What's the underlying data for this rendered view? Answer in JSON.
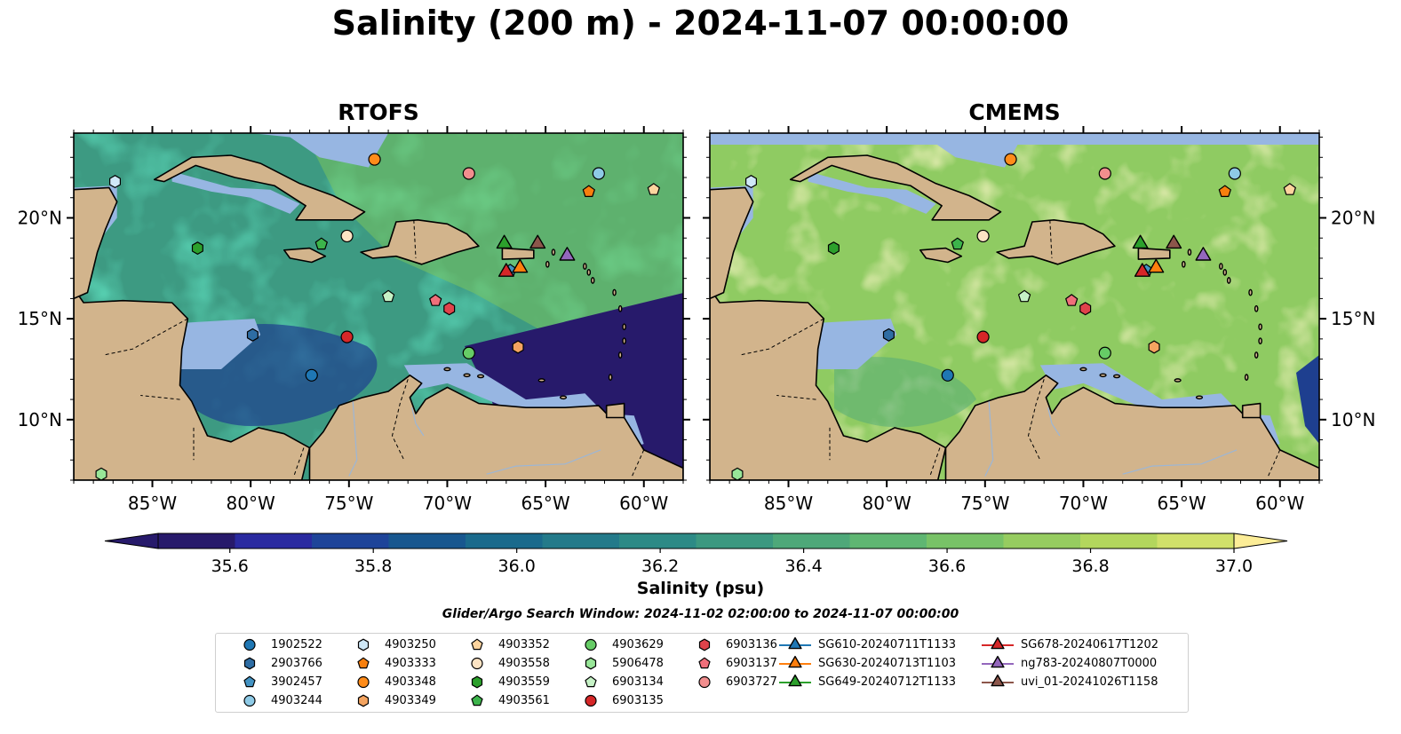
{
  "title": "Salinity (200 m) - 2024-11-07 00:00:00",
  "panels": [
    {
      "id": "rtofs",
      "title": "RTOFS"
    },
    {
      "id": "cmems",
      "title": "CMEMS"
    }
  ],
  "map_extent": {
    "lon_min": -89,
    "lon_max": -58,
    "lat_min": 7,
    "lat_max": 24.2
  },
  "lon_ticks": [
    {
      "lon": -85,
      "label": "85°W"
    },
    {
      "lon": -80,
      "label": "80°W"
    },
    {
      "lon": -75,
      "label": "75°W"
    },
    {
      "lon": -70,
      "label": "70°W"
    },
    {
      "lon": -65,
      "label": "65°W"
    },
    {
      "lon": -60,
      "label": "60°W"
    }
  ],
  "lat_ticks": [
    {
      "lat": 20,
      "label": "20°N"
    },
    {
      "lat": 15,
      "label": "15°N"
    },
    {
      "lat": 10,
      "label": "10°N"
    }
  ],
  "colorbar": {
    "label": "Salinity (psu)",
    "min": 35.5,
    "max": 37.0,
    "step": 0.1,
    "tick_values": [
      "35.6",
      "35.8",
      "36.0",
      "36.2",
      "36.4",
      "36.6",
      "36.8",
      "37.0"
    ],
    "colors": [
      "#271a6b",
      "#2a2aa0",
      "#1e4499",
      "#18578f",
      "#1a6a8c",
      "#237a8a",
      "#2d8a86",
      "#3c9880",
      "#4ea879",
      "#5fb672",
      "#78c267",
      "#96cc60",
      "#b3d65d",
      "#d0e06a",
      "#fced97"
    ]
  },
  "colors": {
    "land": "#d2b48c",
    "shallow": "#97b6e2",
    "ocean_fresh": "#271a6b"
  },
  "search_window": "Glider/Argo Search Window: 2024-11-02 02:00:00 to 2024-11-07 00:00:00",
  "markers": [
    {
      "id": "1902522",
      "shape": "circle",
      "color": "#1f77b4",
      "lon": -76.9,
      "lat": 12.2
    },
    {
      "id": "2903766",
      "shape": "hexagon",
      "color": "#2e6da4",
      "lon": -79.9,
      "lat": 14.2
    },
    {
      "id": "3902457",
      "shape": "pentagon",
      "color": "#4393c3",
      "lon": -66.8,
      "lat": 17.4
    },
    {
      "id": "4903244",
      "shape": "circle",
      "color": "#8ecae6",
      "lon": -62.3,
      "lat": 22.2
    },
    {
      "id": "4903250",
      "shape": "hexagon",
      "color": "#cfe8f7",
      "lon": -86.9,
      "lat": 21.8
    },
    {
      "id": "4903333",
      "shape": "pentagon",
      "color": "#f77f0e",
      "lon": -62.8,
      "lat": 21.3
    },
    {
      "id": "4903348",
      "shape": "circle",
      "color": "#ff8c1a",
      "lon": -73.7,
      "lat": 22.9
    },
    {
      "id": "4903349",
      "shape": "hexagon",
      "color": "#f4a460",
      "lon": -66.4,
      "lat": 13.6
    },
    {
      "id": "4903352",
      "shape": "pentagon",
      "color": "#fdd49e",
      "lon": -59.5,
      "lat": 21.4
    },
    {
      "id": "4903558",
      "shape": "circle",
      "color": "#fde4c4",
      "lon": -75.1,
      "lat": 19.1
    },
    {
      "id": "4903559",
      "shape": "hexagon",
      "color": "#2ca02c",
      "lon": -82.7,
      "lat": 18.5
    },
    {
      "id": "4903561",
      "shape": "pentagon",
      "color": "#3cb44b",
      "lon": -76.4,
      "lat": 18.7
    },
    {
      "id": "4903629",
      "shape": "circle",
      "color": "#66cc66",
      "lon": -68.9,
      "lat": 13.3
    },
    {
      "id": "5906478",
      "shape": "hexagon",
      "color": "#98e698",
      "lon": -87.6,
      "lat": 7.3
    },
    {
      "id": "6903134",
      "shape": "pentagon",
      "color": "#c6f2c6",
      "lon": -73.0,
      "lat": 16.1
    },
    {
      "id": "6903135",
      "shape": "circle",
      "color": "#d62728",
      "lon": -75.1,
      "lat": 14.1
    },
    {
      "id": "6903136",
      "shape": "hexagon",
      "color": "#e0434b",
      "lon": -69.9,
      "lat": 15.5
    },
    {
      "id": "6903137",
      "shape": "pentagon",
      "color": "#ef6f7a",
      "lon": -70.6,
      "lat": 15.9
    },
    {
      "id": "6903727",
      "shape": "circle",
      "color": "#f28e8e",
      "lon": -68.9,
      "lat": 22.2
    },
    {
      "id": "SG610-20240711T1133",
      "shape": "triangle",
      "color": "#1f77b4",
      "lon": null,
      "lat": null
    },
    {
      "id": "SG630-20240713T1103",
      "shape": "triangle",
      "color": "#ff7f0e",
      "lon": -66.3,
      "lat": 17.6
    },
    {
      "id": "SG649-20240712T1133",
      "shape": "triangle",
      "color": "#2ca02c",
      "lon": -67.1,
      "lat": 18.8
    },
    {
      "id": "SG678-20240617T1202",
      "shape": "triangle",
      "color": "#d62728",
      "lon": -67.0,
      "lat": 17.4
    },
    {
      "id": "ng783-20240807T0000",
      "shape": "triangle",
      "color": "#9467bd",
      "lon": -63.9,
      "lat": 18.2
    },
    {
      "id": "uvi_01-20241026T1158",
      "shape": "triangle",
      "color": "#8c564b",
      "lon": -65.4,
      "lat": 18.8
    }
  ]
}
